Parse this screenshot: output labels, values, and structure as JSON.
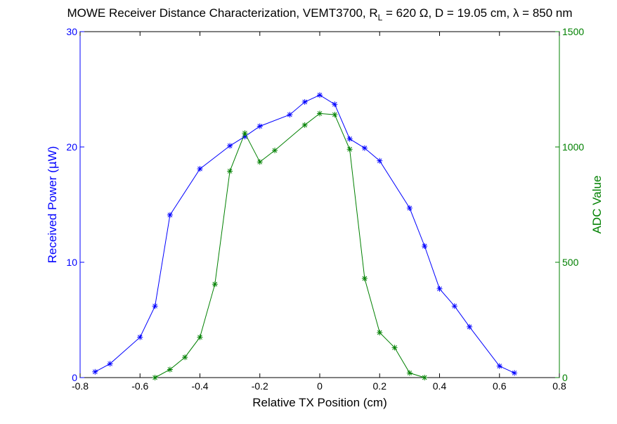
{
  "chart_data": {
    "type": "line",
    "title": {
      "prefix": "MOWE Receiver Distance Characterization, VEMT3700, R",
      "subscript": "L",
      "suffix": " = 620 Ω, D = 19.05 cm, λ = 850 nm"
    },
    "xlabel": "Relative TX Position (cm)",
    "ylabel_left": "Received Power (μW)",
    "ylabel_right": "ADC Value",
    "xlim": [
      -0.8,
      0.8
    ],
    "ylim_left": [
      0,
      30
    ],
    "ylim_right": [
      0,
      1500
    ],
    "x_ticks": [
      "-0.8",
      "-0.6",
      "-0.4",
      "-0.2",
      "0",
      "0.2",
      "0.4",
      "0.6",
      "0.8"
    ],
    "y_ticks_left": [
      "0",
      "10",
      "20",
      "30"
    ],
    "y_ticks_right": [
      "0",
      "500",
      "1000",
      "1500"
    ],
    "grid": false,
    "colors": {
      "left_series": "#0000ff",
      "right_series": "#008000",
      "axes": "#000000"
    },
    "series": [
      {
        "axis": "left",
        "marker": "*",
        "x": [
          -0.75,
          -0.7,
          -0.6,
          -0.55,
          -0.5,
          -0.4,
          -0.3,
          -0.25,
          -0.2,
          -0.1,
          -0.05,
          0,
          0.05,
          0.1,
          0.15,
          0.2,
          0.3,
          0.35,
          0.4,
          0.45,
          0.5,
          0.6,
          0.65
        ],
        "y": [
          0.5,
          1.2,
          3.5,
          6.2,
          14.1,
          18.1,
          20.1,
          20.9,
          21.8,
          22.8,
          23.9,
          24.5,
          23.7,
          20.7,
          19.9,
          18.8,
          14.7,
          11.4,
          7.7,
          6.2,
          4.4,
          1.0,
          0.4
        ]
      },
      {
        "axis": "right",
        "marker": "*",
        "x": [
          -0.55,
          -0.5,
          -0.45,
          -0.4,
          -0.35,
          -0.3,
          -0.25,
          -0.2,
          -0.15,
          -0.05,
          0,
          0.05,
          0.1,
          0.15,
          0.2,
          0.25,
          0.3,
          0.35
        ],
        "y": [
          0,
          35,
          88,
          175,
          405,
          895,
          1060,
          935,
          985,
          1095,
          1145,
          1140,
          990,
          430,
          195,
          130,
          20,
          0
        ]
      }
    ]
  }
}
